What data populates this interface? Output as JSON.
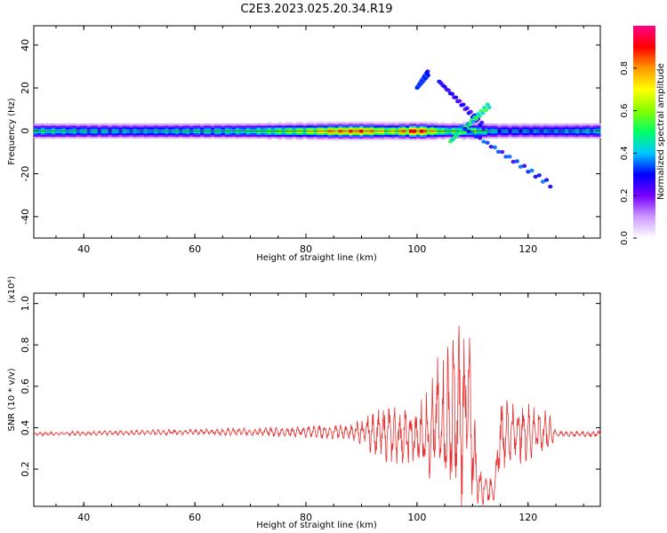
{
  "title": "C2E3.2023.025.20.34.R19",
  "chart_data": [
    {
      "type": "heatmap",
      "xlabel": "Height of straight line (km)",
      "ylabel": "Frequency (Hz)",
      "xlim": [
        31,
        133
      ],
      "ylim": [
        -50,
        49
      ],
      "xticks": [
        "40",
        "60",
        "80",
        "100",
        "120"
      ],
      "yticks": [
        "40",
        "20",
        "0",
        "-20",
        "-40"
      ],
      "grid": false,
      "colorbar": {
        "label": "Normalized spectral amplitude",
        "range": [
          0,
          1
        ],
        "ticks": [
          "0.0",
          "0.2",
          "0.4",
          "0.6",
          "0.8"
        ],
        "colors": [
          "#ffffff",
          "#cc99ff",
          "#7700ff",
          "#0000ff",
          "#00c8ff",
          "#00ff66",
          "#88ff00",
          "#ffff00",
          "#ff9900",
          "#ff0000",
          "#ff0088"
        ]
      },
      "band": {
        "x_range": [
          31,
          133
        ],
        "center_frequency": 0,
        "half_width_hz": 3,
        "amplitude_profile": [
          {
            "x": 31,
            "a": 0.45
          },
          {
            "x": 40,
            "a": 0.4
          },
          {
            "x": 50,
            "a": 0.38
          },
          {
            "x": 60,
            "a": 0.42
          },
          {
            "x": 70,
            "a": 0.45
          },
          {
            "x": 80,
            "a": 0.6
          },
          {
            "x": 85,
            "a": 0.75
          },
          {
            "x": 90,
            "a": 0.8
          },
          {
            "x": 95,
            "a": 0.6
          },
          {
            "x": 100,
            "a": 0.9
          },
          {
            "x": 105,
            "a": 0.5
          },
          {
            "x": 110,
            "a": 0.55
          },
          {
            "x": 115,
            "a": 0.35
          },
          {
            "x": 125,
            "a": 0.35
          },
          {
            "x": 133,
            "a": 0.4
          }
        ]
      },
      "features": [
        {
          "name": "upper-streak",
          "x": [
            100,
            102
          ],
          "y": [
            20,
            27
          ],
          "a": 0.3
        },
        {
          "name": "upper-branch",
          "x": [
            104,
            112
          ],
          "y": [
            23,
            2
          ],
          "a": 0.25
        },
        {
          "name": "disturbance-cluster",
          "x": [
            106,
            113
          ],
          "y": [
            -5,
            12
          ],
          "a": 0.45
        },
        {
          "name": "lower-branch",
          "x": [
            108,
            124
          ],
          "y": [
            2,
            -25
          ],
          "a": 0.3
        }
      ]
    },
    {
      "type": "line",
      "xlabel": "Height of straight line (km)",
      "ylabel": "SNR (10 * v/v)",
      "y_scale_label": "(x10⁴)",
      "xlim": [
        31,
        133
      ],
      "ylim": [
        0.02,
        1.05
      ],
      "xticks": [
        "40",
        "60",
        "80",
        "100",
        "120"
      ],
      "yticks": [
        "1.0",
        "0.8",
        "0.6",
        "0.4",
        "0.2"
      ],
      "grid": false,
      "color": "#e83030",
      "envelope": [
        {
          "x": 31,
          "mean": 0.37,
          "amp": 0.01
        },
        {
          "x": 60,
          "mean": 0.38,
          "amp": 0.015
        },
        {
          "x": 75,
          "mean": 0.38,
          "amp": 0.025
        },
        {
          "x": 88,
          "mean": 0.38,
          "amp": 0.04
        },
        {
          "x": 95,
          "mean": 0.37,
          "amp": 0.15
        },
        {
          "x": 100,
          "mean": 0.35,
          "amp": 0.15
        },
        {
          "x": 104,
          "mean": 0.42,
          "amp": 0.35
        },
        {
          "x": 108,
          "mean": 0.45,
          "amp": 0.5
        },
        {
          "x": 109,
          "mean": 0.55,
          "amp": 0.5
        },
        {
          "x": 111,
          "mean": 0.12,
          "amp": 0.1
        },
        {
          "x": 114,
          "mean": 0.1,
          "amp": 0.06
        },
        {
          "x": 115,
          "mean": 0.38,
          "amp": 0.18
        },
        {
          "x": 124,
          "mean": 0.38,
          "amp": 0.12
        },
        {
          "x": 125,
          "mean": 0.37,
          "amp": 0.015
        },
        {
          "x": 133,
          "mean": 0.37,
          "amp": 0.015
        }
      ]
    }
  ]
}
